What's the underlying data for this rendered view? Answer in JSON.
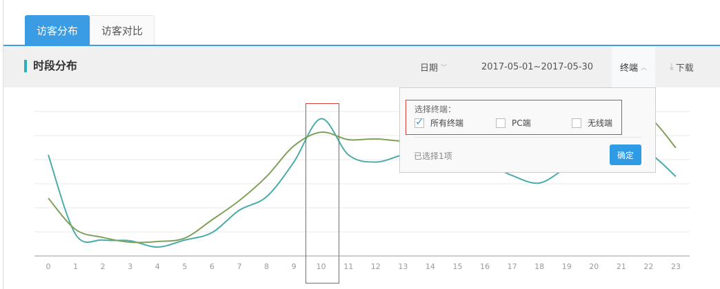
{
  "tabs": [
    {
      "label": "访客分布",
      "active": true
    },
    {
      "label": "访客对比",
      "active": false
    }
  ],
  "header": {
    "title": "时段分布",
    "date_label": "日期",
    "date_range": "2017-05-01~2017-05-30",
    "terminal_label": "终端",
    "download_label": "下载"
  },
  "popup": {
    "label": "选择终端：",
    "options": [
      {
        "label": "所有终端",
        "checked": true
      },
      {
        "label": "PC端",
        "checked": false
      },
      {
        "label": "无线端",
        "checked": false
      }
    ],
    "selected_text": "已选择1项",
    "confirm_label": "确定"
  },
  "colors": {
    "accent": "#3a9de3",
    "series_teal": "#4aaba8",
    "series_green": "#7fa05a",
    "highlight": "#d9403c"
  },
  "chart_data": {
    "type": "line",
    "categories": [
      "0",
      "1",
      "2",
      "3",
      "4",
      "5",
      "6",
      "7",
      "8",
      "9",
      "10",
      "11",
      "12",
      "13",
      "14",
      "15",
      "16",
      "17",
      "18",
      "19",
      "20",
      "21",
      "22",
      "23"
    ],
    "series": [
      {
        "values": [
          4.2,
          0.9,
          0.66,
          0.63,
          0.37,
          0.66,
          0.97,
          1.9,
          2.46,
          3.9,
          5.7,
          4.2,
          3.9,
          4.2,
          4.4,
          4.3,
          3.9,
          3.34,
          3.03,
          3.66,
          4.1,
          4.7,
          4.3,
          3.3
        ]
      },
      {
        "values": [
          2.4,
          1.1,
          0.77,
          0.57,
          0.6,
          0.74,
          1.5,
          2.3,
          3.3,
          4.57,
          5.14,
          4.83,
          4.86,
          4.77,
          4.8,
          4.9,
          5.0,
          5.1,
          5.2,
          5.4,
          5.6,
          5.9,
          5.77,
          4.49
        ]
      }
    ],
    "grid": true,
    "highlighted_category": "10"
  }
}
